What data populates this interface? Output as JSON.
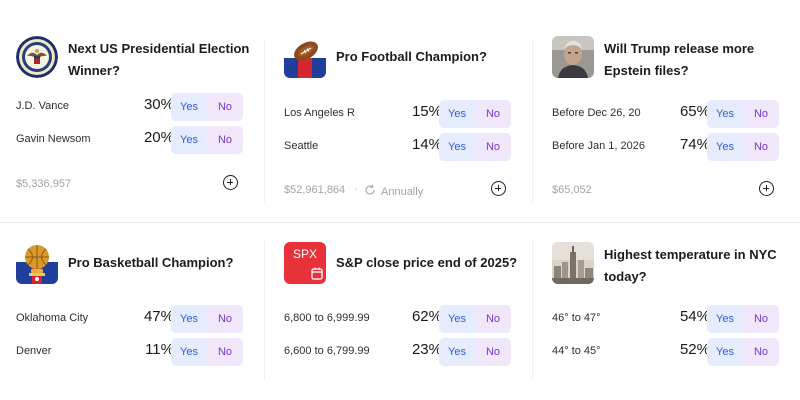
{
  "markets": [
    {
      "title": "Next US Presidential Election Winner?",
      "icon": "presidential-seal-icon",
      "outcomes": [
        {
          "name": "J.D. Vance",
          "pct": "30%",
          "yes": "Yes",
          "no": "No"
        },
        {
          "name": "Gavin Newsom",
          "pct": "20%",
          "yes": "Yes",
          "no": "No"
        }
      ],
      "volume": "$5,336,957"
    },
    {
      "title": "Pro Football Champion?",
      "icon": "football-icon",
      "outcomes": [
        {
          "name": "Los Angeles R",
          "pct": "15%",
          "yes": "Yes",
          "no": "No"
        },
        {
          "name": "Seattle",
          "pct": "14%",
          "yes": "Yes",
          "no": "No"
        }
      ],
      "volume": "$52,961,864",
      "separator": "·",
      "recurrence": "Annually"
    },
    {
      "title": "Will Trump release more Epstein files?",
      "icon": "portrait-icon",
      "outcomes": [
        {
          "name": "Before Dec 26, 20",
          "pct": "65%",
          "yes": "Yes",
          "no": "No"
        },
        {
          "name": "Before Jan 1, 2026",
          "pct": "74%",
          "yes": "Yes",
          "no": "No"
        }
      ],
      "volume": "$65,052"
    },
    {
      "title": "Pro Basketball Champion?",
      "icon": "basketball-trophy-icon",
      "outcomes": [
        {
          "name": "Oklahoma City",
          "pct": "47%",
          "yes": "Yes",
          "no": "No"
        },
        {
          "name": "Denver",
          "pct": "11%",
          "yes": "Yes",
          "no": "No"
        }
      ]
    },
    {
      "title": "S&P close price end of 2025?",
      "icon": "spx-calendar-icon",
      "icon_text": "SPX",
      "outcomes": [
        {
          "name": "6,800 to 6,999.99",
          "pct": "62%",
          "yes": "Yes",
          "no": "No"
        },
        {
          "name": "6,600 to 6,799.99",
          "pct": "23%",
          "yes": "Yes",
          "no": "No"
        }
      ]
    },
    {
      "title": "Highest temperature in NYC today?",
      "icon": "nyc-skyline-icon",
      "outcomes": [
        {
          "name": "46° to 47°",
          "pct": "54%",
          "yes": "Yes",
          "no": "No"
        },
        {
          "name": "44° to 45°",
          "pct": "52%",
          "yes": "Yes",
          "no": "No"
        }
      ]
    }
  ],
  "colors": {
    "yes_bg": "#e4ecfd",
    "yes_text": "#2f5fd0",
    "no_bg": "#f1e7fb",
    "no_text": "#7a38c9",
    "spx_red": "#e8323a"
  }
}
